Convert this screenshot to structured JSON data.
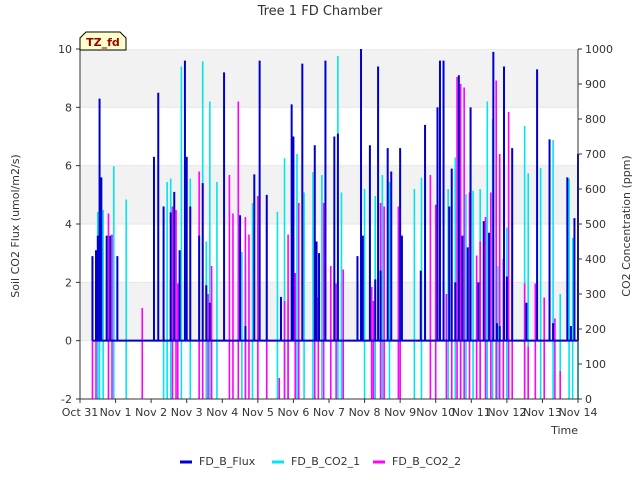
{
  "chart_data": {
    "type": "line",
    "title": "Tree 1 FD Chamber",
    "xlabel": "Time",
    "ylabel_left": "Soil CO2 Flux (umol/m2/s)",
    "ylabel_right": "CO2 Concentration (ppm)",
    "annotation": "TZ_fd",
    "y_left_range": [
      -2,
      10
    ],
    "y_right_range": [
      0,
      1000
    ],
    "y_left_ticks": [
      "-2",
      "0",
      "2",
      "4",
      "6",
      "8",
      "10"
    ],
    "y_right_ticks": [
      "0",
      "100",
      "200",
      "300",
      "400",
      "500",
      "600",
      "700",
      "800",
      "900",
      "1000"
    ],
    "x_range_days": [
      0,
      14
    ],
    "x_ticks": [
      "Oct 31",
      "Nov 1",
      "Nov 2",
      "Nov 3",
      "Nov 4",
      "Nov 5",
      "Nov 6",
      "Nov 7",
      "Nov 8",
      "Nov 9",
      "Nov 10",
      "Nov 11",
      "Nov 12",
      "Nov 13",
      "Nov 14"
    ],
    "grid": "horizontal bands",
    "legend_position": "bottom",
    "series": [
      {
        "name": "FD_B_Flux",
        "axis": "left",
        "color": "#0000cc",
        "baseline": 0,
        "spikes": [
          [
            0.35,
            2.9
          ],
          [
            0.45,
            3.1
          ],
          [
            0.5,
            3.6
          ],
          [
            0.55,
            8.3
          ],
          [
            0.6,
            5.6
          ],
          [
            0.75,
            3.6
          ],
          [
            0.85,
            3.6
          ],
          [
            1.05,
            2.9
          ],
          [
            2.08,
            6.3
          ],
          [
            2.2,
            8.5
          ],
          [
            2.35,
            4.6
          ],
          [
            2.55,
            4.4
          ],
          [
            2.65,
            5.1
          ],
          [
            2.8,
            3.1
          ],
          [
            2.95,
            9.6
          ],
          [
            3.0,
            6.3
          ],
          [
            3.1,
            4.6
          ],
          [
            3.35,
            3.6
          ],
          [
            3.45,
            5.4
          ],
          [
            3.55,
            1.9
          ],
          [
            3.65,
            1.3
          ],
          [
            4.05,
            9.2
          ],
          [
            4.5,
            4.3
          ],
          [
            4.65,
            0.5
          ],
          [
            4.9,
            5.7
          ],
          [
            5.05,
            9.6
          ],
          [
            5.25,
            5.0
          ],
          [
            5.65,
            1.5
          ],
          [
            5.95,
            8.1
          ],
          [
            6.0,
            7.0
          ],
          [
            6.25,
            9.5
          ],
          [
            6.6,
            6.7
          ],
          [
            6.65,
            3.4
          ],
          [
            6.72,
            3.0
          ],
          [
            6.9,
            9.6
          ],
          [
            7.15,
            7.0
          ],
          [
            7.25,
            7.1
          ],
          [
            7.8,
            2.9
          ],
          [
            7.9,
            10.0
          ],
          [
            7.95,
            3.6
          ],
          [
            8.15,
            6.7
          ],
          [
            8.3,
            2.1
          ],
          [
            8.38,
            9.4
          ],
          [
            8.45,
            2.4
          ],
          [
            8.65,
            6.6
          ],
          [
            8.75,
            5.8
          ],
          [
            9.0,
            6.6
          ],
          [
            9.05,
            3.6
          ],
          [
            9.58,
            2.4
          ],
          [
            9.7,
            7.4
          ],
          [
            10.05,
            8.0
          ],
          [
            10.12,
            9.6
          ],
          [
            10.22,
            9.6
          ],
          [
            10.38,
            4.6
          ],
          [
            10.45,
            5.9
          ],
          [
            10.55,
            2.0
          ],
          [
            10.65,
            9.1
          ],
          [
            10.75,
            3.6
          ],
          [
            10.9,
            3.2
          ],
          [
            10.98,
            8.0
          ],
          [
            11.2,
            2.0
          ],
          [
            11.35,
            4.1
          ],
          [
            11.5,
            3.7
          ],
          [
            11.62,
            9.9
          ],
          [
            11.72,
            0.6
          ],
          [
            11.8,
            0.5
          ],
          [
            11.92,
            9.4
          ],
          [
            12.0,
            2.2
          ],
          [
            12.15,
            6.6
          ],
          [
            12.55,
            1.3
          ],
          [
            12.85,
            9.3
          ],
          [
            13.2,
            6.9
          ],
          [
            13.3,
            0.6
          ],
          [
            13.7,
            5.6
          ],
          [
            13.8,
            0.5
          ],
          [
            13.9,
            4.2
          ],
          [
            14.0,
            6.4
          ]
        ]
      },
      {
        "name": "FD_B_CO2_1",
        "axis": "right",
        "color": "#00e5ee",
        "spikes": [
          [
            0.5,
            535
          ],
          [
            0.55,
            450
          ],
          [
            0.65,
            540
          ],
          [
            0.95,
            665
          ],
          [
            1.3,
            570
          ],
          [
            2.35,
            550
          ],
          [
            2.45,
            620
          ],
          [
            2.55,
            630
          ],
          [
            2.85,
            950
          ],
          [
            3.1,
            630
          ],
          [
            3.45,
            965
          ],
          [
            3.55,
            450
          ],
          [
            3.65,
            850
          ],
          [
            3.85,
            620
          ],
          [
            4.45,
            580
          ],
          [
            4.55,
            420
          ],
          [
            4.65,
            385
          ],
          [
            4.85,
            560
          ],
          [
            5.25,
            490
          ],
          [
            5.55,
            535
          ],
          [
            5.75,
            688
          ],
          [
            5.85,
            280
          ],
          [
            6.1,
            700
          ],
          [
            6.3,
            590
          ],
          [
            6.55,
            648
          ],
          [
            6.8,
            640
          ],
          [
            7.25,
            980
          ],
          [
            7.35,
            590
          ],
          [
            8.0,
            600
          ],
          [
            8.3,
            580
          ],
          [
            8.5,
            640
          ],
          [
            8.7,
            620
          ],
          [
            9.0,
            545
          ],
          [
            9.4,
            600
          ],
          [
            9.6,
            632
          ],
          [
            10.35,
            600
          ],
          [
            10.45,
            490
          ],
          [
            10.55,
            690
          ],
          [
            10.7,
            550
          ],
          [
            10.85,
            585
          ],
          [
            11.05,
            595
          ],
          [
            11.25,
            600
          ],
          [
            11.45,
            850
          ],
          [
            11.6,
            800
          ],
          [
            11.75,
            380
          ],
          [
            12.0,
            490
          ],
          [
            12.5,
            780
          ],
          [
            12.6,
            645
          ],
          [
            12.95,
            660
          ],
          [
            13.3,
            740
          ],
          [
            13.5,
            300
          ],
          [
            13.75,
            630
          ],
          [
            13.85,
            460
          ],
          [
            14.0,
            470
          ]
        ]
      },
      {
        "name": "FD_B_CO2_2",
        "axis": "right",
        "color": "#ff00ff",
        "spikes": [
          [
            0.35,
            400
          ],
          [
            0.45,
            300
          ],
          [
            0.8,
            530
          ],
          [
            0.9,
            470
          ],
          [
            1.75,
            260
          ],
          [
            2.6,
            550
          ],
          [
            2.7,
            540
          ],
          [
            2.75,
            330
          ],
          [
            3.35,
            650
          ],
          [
            3.45,
            480
          ],
          [
            3.6,
            300
          ],
          [
            3.7,
            380
          ],
          [
            4.2,
            640
          ],
          [
            4.3,
            530
          ],
          [
            4.45,
            850
          ],
          [
            4.65,
            520
          ],
          [
            4.75,
            470
          ],
          [
            5.0,
            580
          ],
          [
            5.25,
            540
          ],
          [
            5.6,
            60
          ],
          [
            5.75,
            280
          ],
          [
            5.85,
            470
          ],
          [
            6.05,
            360
          ],
          [
            6.15,
            560
          ],
          [
            6.6,
            220
          ],
          [
            6.7,
            290
          ],
          [
            6.85,
            560
          ],
          [
            7.05,
            380
          ],
          [
            7.2,
            330
          ],
          [
            7.4,
            370
          ],
          [
            8.2,
            320
          ],
          [
            8.25,
            280
          ],
          [
            8.45,
            560
          ],
          [
            8.55,
            550
          ],
          [
            8.95,
            550
          ],
          [
            9.0,
            660
          ],
          [
            9.85,
            640
          ],
          [
            10.0,
            555
          ],
          [
            10.3,
            300
          ],
          [
            10.45,
            330
          ],
          [
            10.6,
            920
          ],
          [
            10.7,
            900
          ],
          [
            10.8,
            890
          ],
          [
            10.95,
            590
          ],
          [
            11.15,
            410
          ],
          [
            11.25,
            450
          ],
          [
            11.4,
            520
          ],
          [
            11.55,
            590
          ],
          [
            11.7,
            910
          ],
          [
            11.8,
            700
          ],
          [
            11.9,
            400
          ],
          [
            12.05,
            820
          ],
          [
            12.15,
            510
          ],
          [
            12.5,
            330
          ],
          [
            12.6,
            150
          ],
          [
            12.8,
            330
          ],
          [
            13.05,
            290
          ],
          [
            13.35,
            230
          ],
          [
            13.5,
            80
          ]
        ]
      }
    ]
  }
}
